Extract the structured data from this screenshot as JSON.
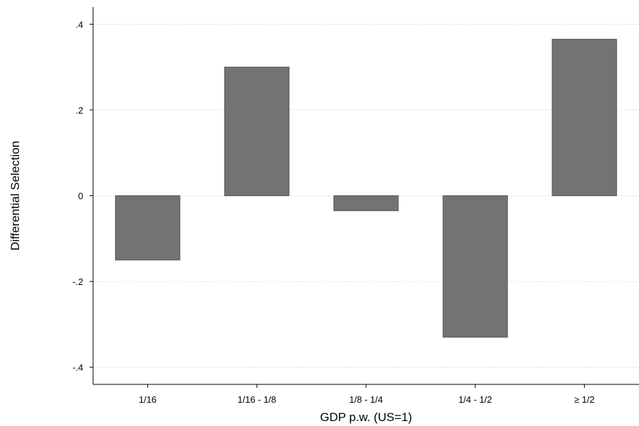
{
  "chart_data": {
    "type": "bar",
    "categories": [
      "1/16",
      "1/16 - 1/8",
      "1/8 - 1/4",
      "1/4 - 1/2",
      "≥ 1/2"
    ],
    "values": [
      -0.15,
      0.3,
      -0.035,
      -0.33,
      0.365
    ],
    "xlabel": "GDP p.w. (US=1)",
    "ylabel": "Differential Selection",
    "ylim": [
      -0.44,
      0.44
    ],
    "yticks": [
      -0.4,
      -0.2,
      0,
      0.2,
      0.4
    ],
    "ytick_labels": [
      "-.4",
      "-.2",
      "0",
      ".2",
      ".4"
    ],
    "grid": true,
    "bar_color": "#737373"
  }
}
